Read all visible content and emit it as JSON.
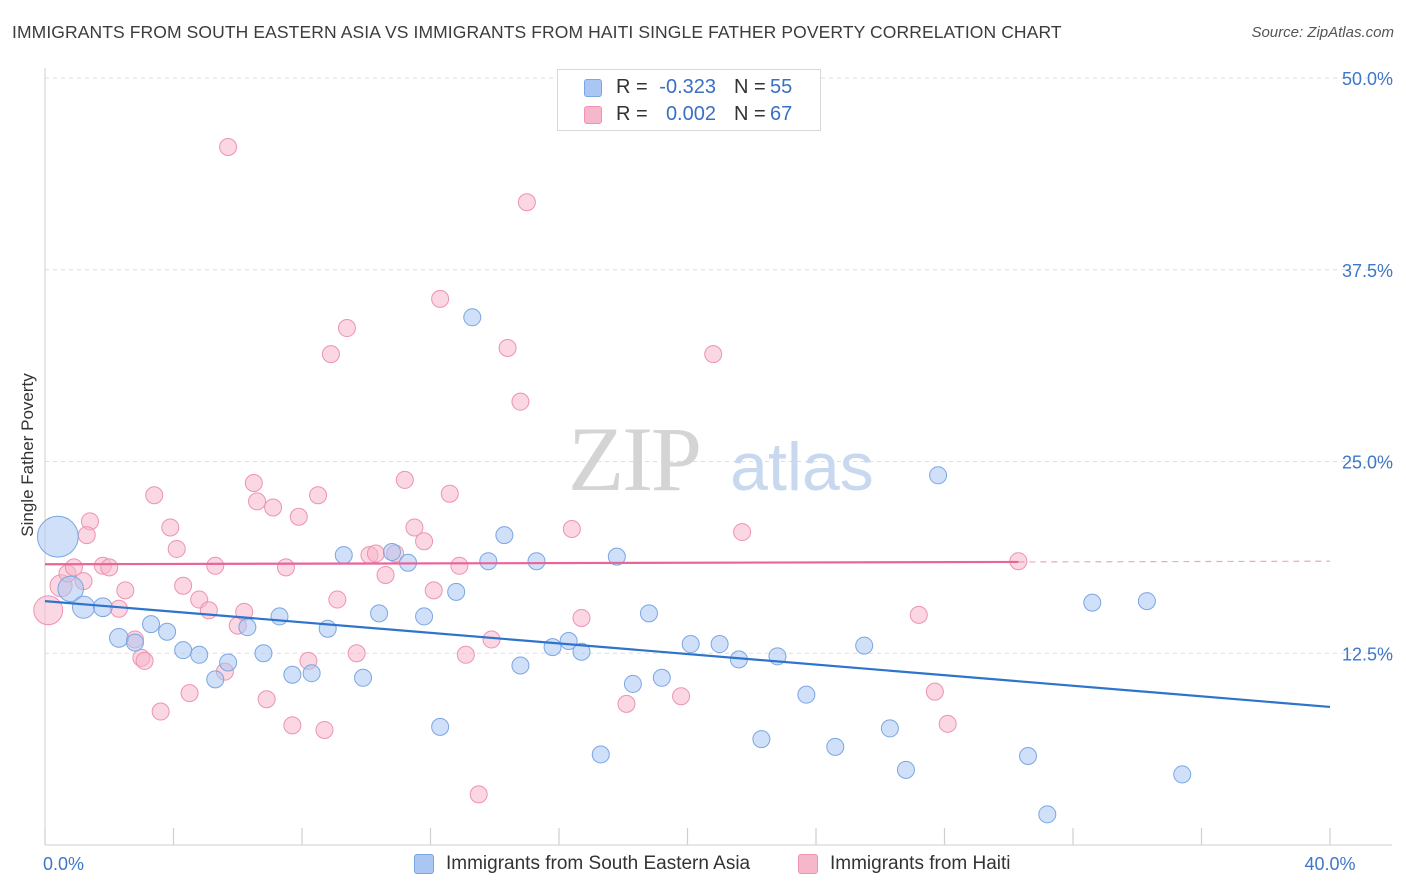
{
  "header": {
    "title": "IMMIGRANTS FROM SOUTH EASTERN ASIA VS IMMIGRANTS FROM HAITI SINGLE FATHER POVERTY CORRELATION CHART",
    "source": "Source: ZipAtlas.com"
  },
  "colors": {
    "blue_fill": "#a9c7f2",
    "blue_stroke": "#7aa6e3",
    "blue_line": "#2e73cc",
    "pink_fill": "#f6b7ca",
    "pink_stroke": "#ee93b0",
    "pink_line": "#e8659a",
    "axis_text": "#3f76c8",
    "grid": "#dddddd"
  },
  "legend_top": {
    "rows": [
      {
        "r_label": "R =",
        "r_value": "-0.323",
        "n_label": "N =",
        "n_value": "55",
        "series": "blue"
      },
      {
        "r_label": "R =",
        "r_value": "0.002",
        "n_label": "N =",
        "n_value": "67",
        "series": "pink"
      }
    ]
  },
  "legend_bottom": {
    "items": [
      {
        "label": "Immigrants from South Eastern Asia",
        "series": "blue"
      },
      {
        "label": "Immigrants from Haiti",
        "series": "pink"
      }
    ]
  },
  "watermark": {
    "zip": "ZIP",
    "atlas": "atlas"
  },
  "chart_data": {
    "type": "scatter",
    "title": "IMMIGRANTS FROM SOUTH EASTERN ASIA VS IMMIGRANTS FROM HAITI SINGLE FATHER POVERTY CORRELATION CHART",
    "ylabel": "Single Father Poverty",
    "xlabel": "",
    "xlim": [
      0,
      40
    ],
    "ylim": [
      0,
      50
    ],
    "x_tick_labels": [
      {
        "value": 0,
        "label": "0.0%"
      },
      {
        "value": 40,
        "label": "40.0%"
      }
    ],
    "y_tick_labels": [
      {
        "value": 12.5,
        "label": "12.5%"
      },
      {
        "value": 25,
        "label": "25.0%"
      },
      {
        "value": 37.5,
        "label": "37.5%"
      },
      {
        "value": 50,
        "label": "50.0%"
      }
    ],
    "legend_position": "top-center",
    "series": [
      {
        "name": "Immigrants from South Eastern Asia",
        "color": "blue",
        "R": -0.323,
        "N": 55,
        "trend": {
          "x": [
            0,
            40
          ],
          "y": [
            15.9,
            9.0
          ],
          "solid_to": 40
        },
        "points": [
          [
            0.4,
            20.1,
            2.4
          ],
          [
            0.8,
            16.7,
            1.5
          ],
          [
            1.2,
            15.5,
            1.3
          ],
          [
            1.8,
            15.5,
            1.1
          ],
          [
            2.3,
            13.5,
            1.1
          ],
          [
            2.8,
            13.2,
            1.0
          ],
          [
            3.3,
            14.4,
            1.0
          ],
          [
            3.8,
            13.9,
            1.0
          ],
          [
            4.3,
            12.7,
            1.0
          ],
          [
            4.8,
            12.4,
            1.0
          ],
          [
            5.3,
            10.8,
            1.0
          ],
          [
            5.7,
            11.9,
            1.0
          ],
          [
            6.3,
            14.2,
            1.0
          ],
          [
            6.8,
            12.5,
            1.0
          ],
          [
            7.3,
            14.9,
            1.0
          ],
          [
            7.7,
            11.1,
            1.0
          ],
          [
            8.3,
            11.2,
            1.0
          ],
          [
            8.8,
            14.1,
            1.0
          ],
          [
            9.3,
            18.9,
            1.0
          ],
          [
            9.9,
            10.9,
            1.0
          ],
          [
            10.4,
            15.1,
            1.0
          ],
          [
            10.8,
            19.1,
            1.0
          ],
          [
            11.3,
            18.4,
            1.0
          ],
          [
            11.8,
            14.9,
            1.0
          ],
          [
            12.3,
            7.7,
            1.0
          ],
          [
            12.8,
            16.5,
            1.0
          ],
          [
            13.3,
            34.4,
            1.0
          ],
          [
            13.8,
            18.5,
            1.0
          ],
          [
            14.3,
            20.2,
            1.0
          ],
          [
            14.8,
            11.7,
            1.0
          ],
          [
            15.3,
            18.5,
            1.0
          ],
          [
            15.8,
            12.9,
            1.0
          ],
          [
            16.3,
            13.3,
            1.0
          ],
          [
            16.7,
            12.6,
            1.0
          ],
          [
            17.3,
            5.9,
            1.0
          ],
          [
            17.8,
            18.8,
            1.0
          ],
          [
            18.3,
            10.5,
            1.0
          ],
          [
            18.8,
            15.1,
            1.0
          ],
          [
            19.2,
            10.9,
            1.0
          ],
          [
            20.1,
            13.1,
            1.0
          ],
          [
            21.0,
            13.1,
            1.0
          ],
          [
            21.6,
            12.1,
            1.0
          ],
          [
            22.3,
            6.9,
            1.0
          ],
          [
            22.8,
            12.3,
            1.0
          ],
          [
            23.7,
            9.8,
            1.0
          ],
          [
            24.6,
            6.4,
            1.0
          ],
          [
            25.5,
            13.0,
            1.0
          ],
          [
            26.3,
            7.6,
            1.0
          ],
          [
            26.8,
            4.9,
            1.0
          ],
          [
            27.8,
            24.1,
            1.0
          ],
          [
            30.6,
            5.8,
            1.0
          ],
          [
            31.2,
            2.0,
            1.0
          ],
          [
            32.6,
            15.8,
            1.0
          ],
          [
            34.3,
            15.9,
            1.0
          ],
          [
            35.4,
            4.6,
            1.0
          ]
        ]
      },
      {
        "name": "Immigrants from Haiti",
        "color": "pink",
        "R": 0.002,
        "N": 67,
        "trend": {
          "x": [
            0,
            40
          ],
          "y": [
            18.3,
            18.5
          ],
          "solid_to": 30.3
        },
        "points": [
          [
            0.1,
            15.3,
            1.7
          ],
          [
            0.5,
            16.9,
            1.3
          ],
          [
            0.7,
            17.7,
            1.0
          ],
          [
            0.9,
            18.1,
            1.0
          ],
          [
            1.2,
            17.2,
            1.0
          ],
          [
            1.4,
            21.1,
            1.0
          ],
          [
            1.3,
            20.2,
            1.0
          ],
          [
            1.8,
            18.2,
            1.0
          ],
          [
            2.0,
            18.1,
            1.0
          ],
          [
            2.3,
            15.4,
            1.0
          ],
          [
            2.5,
            16.6,
            1.0
          ],
          [
            2.8,
            13.4,
            1.0
          ],
          [
            3.0,
            12.2,
            1.0
          ],
          [
            3.1,
            12.0,
            1.0
          ],
          [
            3.4,
            22.8,
            1.0
          ],
          [
            3.6,
            8.7,
            1.0
          ],
          [
            3.9,
            20.7,
            1.0
          ],
          [
            4.1,
            19.3,
            1.0
          ],
          [
            4.3,
            16.9,
            1.0
          ],
          [
            4.5,
            9.9,
            1.0
          ],
          [
            4.8,
            16.0,
            1.0
          ],
          [
            5.1,
            15.3,
            1.0
          ],
          [
            5.3,
            18.2,
            1.0
          ],
          [
            5.6,
            11.3,
            1.0
          ],
          [
            5.7,
            45.5,
            1.0
          ],
          [
            6.0,
            14.3,
            1.0
          ],
          [
            6.2,
            15.2,
            1.0
          ],
          [
            6.5,
            23.6,
            1.0
          ],
          [
            6.6,
            22.4,
            1.0
          ],
          [
            6.9,
            9.5,
            1.0
          ],
          [
            7.1,
            22.0,
            1.0
          ],
          [
            7.5,
            18.1,
            1.0
          ],
          [
            7.7,
            7.8,
            1.0
          ],
          [
            7.9,
            21.4,
            1.0
          ],
          [
            8.2,
            12.0,
            1.0
          ],
          [
            8.5,
            22.8,
            1.0
          ],
          [
            8.7,
            7.5,
            1.0
          ],
          [
            8.9,
            32.0,
            1.0
          ],
          [
            9.1,
            16.0,
            1.0
          ],
          [
            9.4,
            33.7,
            1.0
          ],
          [
            9.7,
            12.5,
            1.0
          ],
          [
            10.1,
            18.9,
            1.0
          ],
          [
            10.3,
            19.0,
            1.0
          ],
          [
            10.6,
            17.6,
            1.0
          ],
          [
            10.9,
            19.0,
            1.0
          ],
          [
            11.2,
            23.8,
            1.0
          ],
          [
            11.5,
            20.7,
            1.0
          ],
          [
            11.8,
            19.8,
            1.0
          ],
          [
            12.1,
            16.6,
            1.0
          ],
          [
            12.3,
            35.6,
            1.0
          ],
          [
            12.6,
            22.9,
            1.0
          ],
          [
            12.9,
            18.2,
            1.0
          ],
          [
            13.1,
            12.4,
            1.0
          ],
          [
            13.5,
            3.3,
            1.0
          ],
          [
            13.9,
            13.4,
            1.0
          ],
          [
            14.4,
            32.4,
            1.0
          ],
          [
            14.8,
            28.9,
            1.0
          ],
          [
            15.0,
            41.9,
            1.0
          ],
          [
            16.4,
            20.6,
            1.0
          ],
          [
            16.7,
            14.8,
            1.0
          ],
          [
            18.1,
            9.2,
            1.0
          ],
          [
            19.8,
            9.7,
            1.0
          ],
          [
            20.8,
            32.0,
            1.0
          ],
          [
            21.7,
            20.4,
            1.0
          ],
          [
            27.2,
            15.0,
            1.0
          ],
          [
            27.7,
            10.0,
            1.0
          ],
          [
            28.1,
            7.9,
            1.0
          ],
          [
            30.3,
            18.5,
            1.0
          ]
        ]
      }
    ]
  }
}
